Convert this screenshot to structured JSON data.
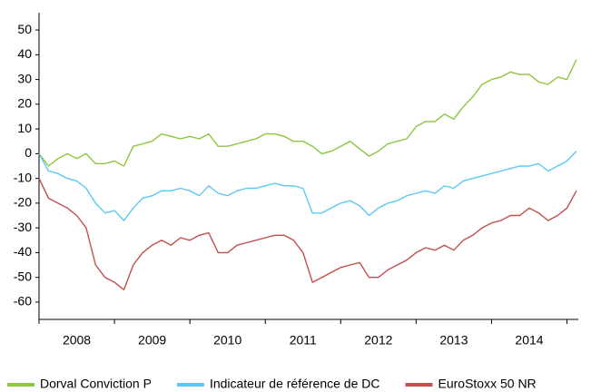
{
  "chart_data": {
    "type": "line",
    "categories": [
      "2008",
      "2009",
      "2010",
      "2011",
      "2012",
      "2013",
      "2014"
    ],
    "x": [
      2008.0,
      2008.125,
      2008.25,
      2008.375,
      2008.5,
      2008.625,
      2008.75,
      2008.875,
      2009.0,
      2009.125,
      2009.25,
      2009.375,
      2009.5,
      2009.625,
      2009.75,
      2009.875,
      2010.0,
      2010.125,
      2010.25,
      2010.375,
      2010.5,
      2010.625,
      2010.75,
      2010.875,
      2011.0,
      2011.125,
      2011.25,
      2011.375,
      2011.5,
      2011.625,
      2011.75,
      2011.875,
      2012.0,
      2012.125,
      2012.25,
      2012.375,
      2012.5,
      2012.625,
      2012.75,
      2012.875,
      2013.0,
      2013.125,
      2013.25,
      2013.375,
      2013.5,
      2013.625,
      2013.75,
      2013.875,
      2014.0,
      2014.125,
      2014.25,
      2014.375,
      2014.5,
      2014.625,
      2014.75,
      2014.875,
      2015.0,
      2015.125
    ],
    "series": [
      {
        "name": "Dorval Conviction P",
        "color": "#8dc63f",
        "values": [
          0,
          -5,
          -2,
          0,
          -2,
          0,
          -4,
          -4,
          -3,
          -5,
          3,
          4,
          5,
          8,
          7,
          6,
          7,
          6,
          8,
          3,
          3,
          4,
          5,
          6,
          8,
          8,
          7,
          5,
          5,
          3,
          0,
          1,
          3,
          5,
          2,
          -1,
          1,
          4,
          5,
          6,
          11,
          13,
          13,
          16,
          14,
          19,
          23,
          28,
          30,
          31,
          33,
          32,
          32,
          29,
          28,
          31,
          30,
          38
        ]
      },
      {
        "name": "Indicateur de référence de DC",
        "color": "#5bc8f5",
        "values": [
          0,
          -7,
          -8,
          -10,
          -11,
          -14,
          -20,
          -24,
          -23,
          -27,
          -22,
          -18,
          -17,
          -15,
          -15,
          -14,
          -15,
          -17,
          -13,
          -16,
          -17,
          -15,
          -14,
          -14,
          -13,
          -12,
          -13,
          -13,
          -14,
          -24,
          -24,
          -22,
          -20,
          -19,
          -21,
          -25,
          -22,
          -20,
          -19,
          -17,
          -16,
          -15,
          -16,
          -13,
          -14,
          -11,
          -10,
          -9,
          -8,
          -7,
          -6,
          -5,
          -5,
          -4,
          -7,
          -5,
          -3,
          1
        ]
      },
      {
        "name": "EuroStoxx 50 NR",
        "color": "#c0504d",
        "values": [
          -10,
          -18,
          -20,
          -22,
          -25,
          -30,
          -45,
          -50,
          -52,
          -55,
          -45,
          -40,
          -37,
          -35,
          -37,
          -34,
          -35,
          -33,
          -32,
          -40,
          -40,
          -37,
          -36,
          -35,
          -34,
          -33,
          -33,
          -35,
          -40,
          -52,
          -50,
          -48,
          -46,
          -45,
          -44,
          -50,
          -50,
          -47,
          -45,
          -43,
          -40,
          -38,
          -39,
          -37,
          -39,
          -35,
          -33,
          -30,
          -28,
          -27,
          -25,
          -25,
          -22,
          -24,
          -27,
          -25,
          -22,
          -15
        ]
      }
    ],
    "xlim": [
      2008,
      2015.15
    ],
    "xticks": [
      2008,
      2009,
      2010,
      2011,
      2012,
      2013,
      2014,
      2015
    ],
    "ylim": [
      -67,
      57
    ],
    "yticks": [
      -60,
      -50,
      -40,
      -30,
      -20,
      -10,
      0,
      10,
      20,
      30,
      40,
      50
    ],
    "grid": false,
    "legend": "bottom"
  }
}
